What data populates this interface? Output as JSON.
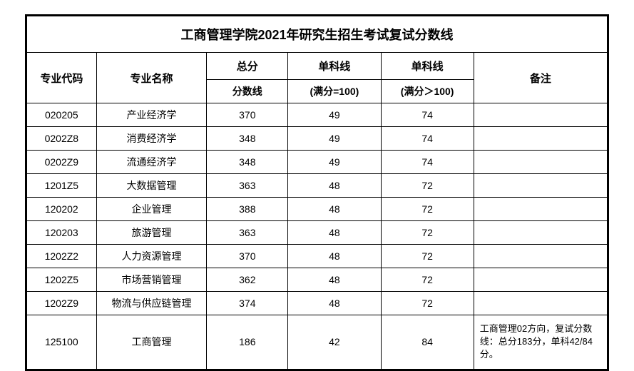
{
  "title": "工商管理学院2021年研究生招生考试复试分数线",
  "headers": {
    "code": "专业代码",
    "name": "专业名称",
    "total": "总分",
    "score1": "单科线",
    "score2": "单科线",
    "remark": "备注",
    "total_sub": "分数线",
    "score1_sub": "(满分=100)",
    "score2_sub": "(满分＞100)"
  },
  "rows": [
    {
      "code": "020205",
      "name": "产业经济学",
      "total": "370",
      "score1": "49",
      "score2": "74",
      "remark": ""
    },
    {
      "code": "0202Z8",
      "name": "消费经济学",
      "total": "348",
      "score1": "49",
      "score2": "74",
      "remark": ""
    },
    {
      "code": "0202Z9",
      "name": "流通经济学",
      "total": "348",
      "score1": "49",
      "score2": "74",
      "remark": ""
    },
    {
      "code": "1201Z5",
      "name": "大数据管理",
      "total": "363",
      "score1": "48",
      "score2": "72",
      "remark": ""
    },
    {
      "code": "120202",
      "name": "企业管理",
      "total": "388",
      "score1": "48",
      "score2": "72",
      "remark": ""
    },
    {
      "code": "120203",
      "name": "旅游管理",
      "total": "363",
      "score1": "48",
      "score2": "72",
      "remark": ""
    },
    {
      "code": "1202Z2",
      "name": "人力资源管理",
      "total": "370",
      "score1": "48",
      "score2": "72",
      "remark": ""
    },
    {
      "code": "1202Z5",
      "name": "市场营销管理",
      "total": "362",
      "score1": "48",
      "score2": "72",
      "remark": ""
    },
    {
      "code": "1202Z9",
      "name": "物流与供应链管理",
      "total": "374",
      "score1": "48",
      "score2": "72",
      "remark": ""
    },
    {
      "code": "125100",
      "name": "工商管理",
      "total": "186",
      "score1": "42",
      "score2": "84",
      "remark": "工商管理02方向，复试分数线：总分183分，单科42/84分。"
    }
  ],
  "styling": {
    "border_color": "#000000",
    "background_color": "#ffffff",
    "text_color": "#000000",
    "title_fontsize": 18,
    "header_fontsize": 15,
    "cell_fontsize": 14,
    "remark_fontsize": 13
  }
}
